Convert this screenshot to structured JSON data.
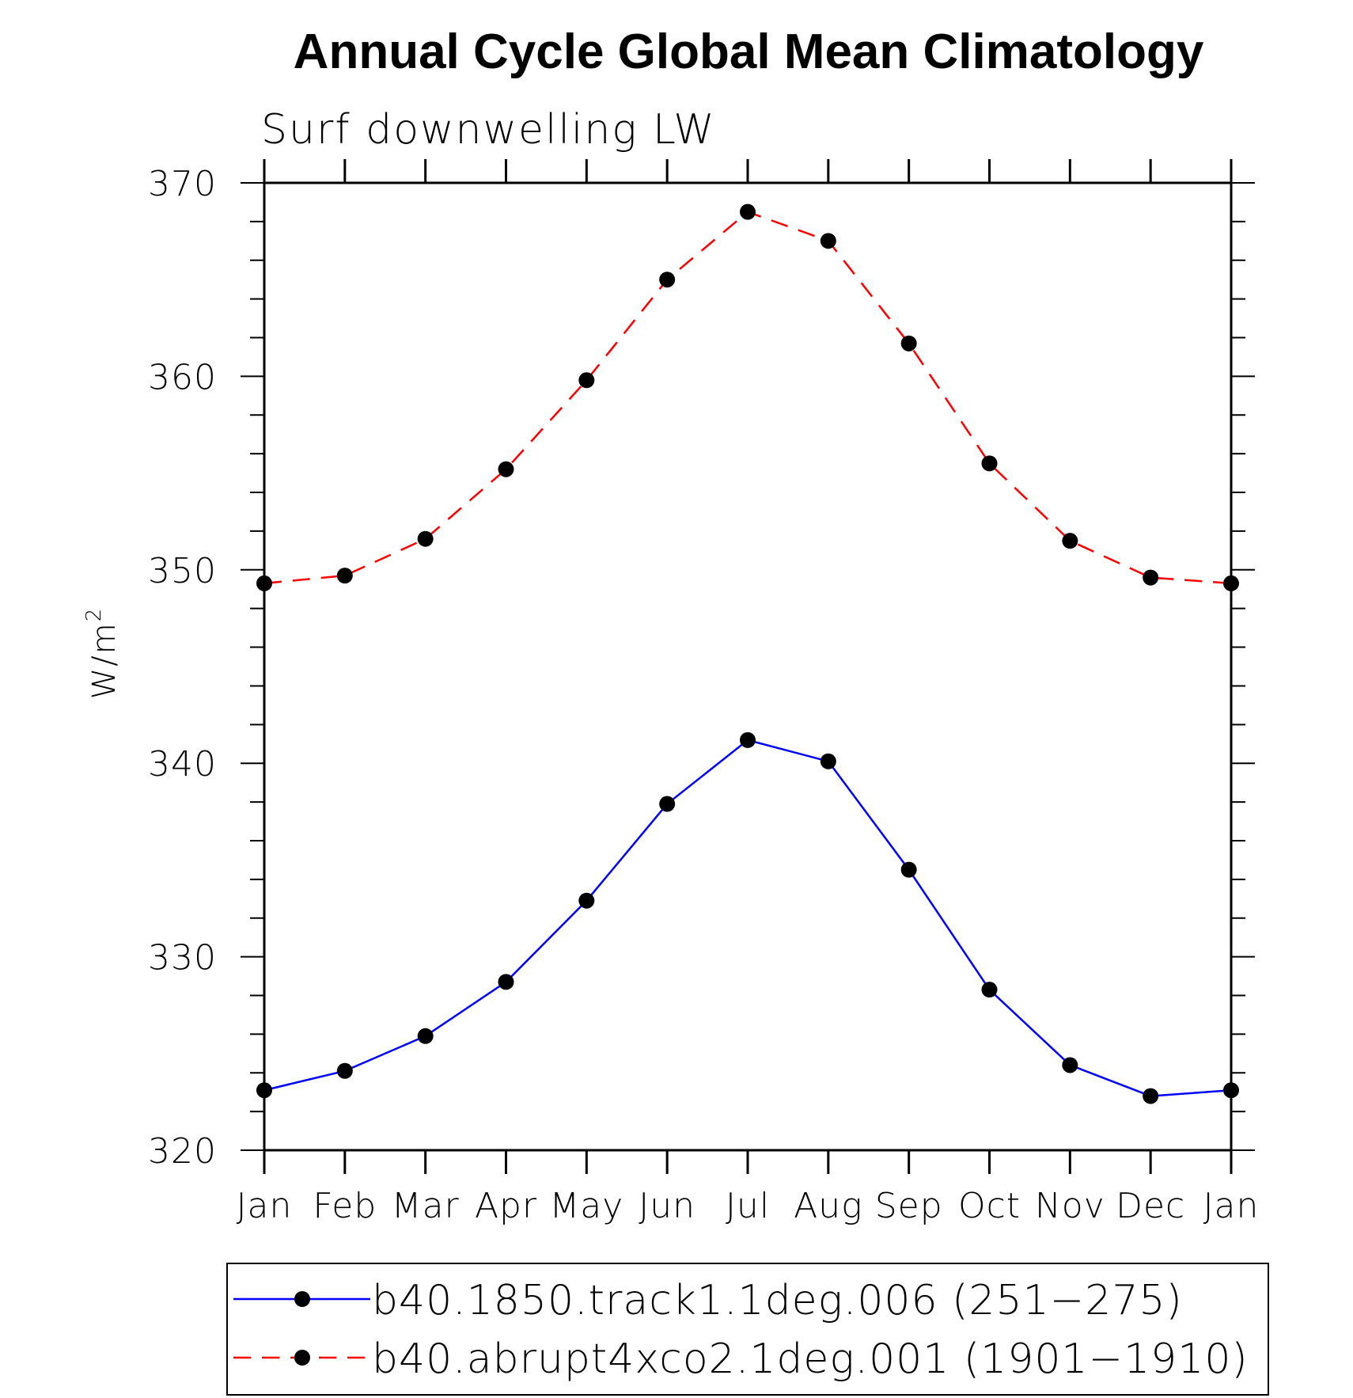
{
  "chart_data": {
    "type": "line",
    "title": "Annual Cycle Global Mean Climatology",
    "subtitle": "Surf downwelling LW",
    "ylabel": "W/m",
    "ylabel_superscript": "2",
    "xlabel": "",
    "categories": [
      "Jan",
      "Feb",
      "Mar",
      "Apr",
      "May",
      "Jun",
      "Jul",
      "Aug",
      "Sep",
      "Oct",
      "Nov",
      "Dec",
      "Jan"
    ],
    "ylim": [
      320,
      370
    ],
    "yticks": [
      "320",
      "330",
      "340",
      "350",
      "360",
      "370"
    ],
    "grid": false,
    "legend_position": "bottom",
    "series": [
      {
        "name": "b40.1850.track1.1deg.006 (251−275)",
        "color": "#0000ff",
        "line_style": "solid",
        "marker": "filled-circle",
        "marker_color": "#000000",
        "values": [
          323.1,
          324.1,
          325.9,
          328.7,
          332.9,
          337.9,
          341.2,
          340.1,
          334.5,
          328.3,
          324.4,
          322.8,
          323.1
        ]
      },
      {
        "name": "b40.abrupt4xco2.1deg.001 (1901−1910)",
        "color": "#ff0000",
        "line_style": "dashed",
        "marker": "filled-circle",
        "marker_color": "#000000",
        "values": [
          349.3,
          349.7,
          351.6,
          355.2,
          359.8,
          365.0,
          368.5,
          367.0,
          361.7,
          355.5,
          351.5,
          349.6,
          349.3
        ]
      }
    ]
  }
}
